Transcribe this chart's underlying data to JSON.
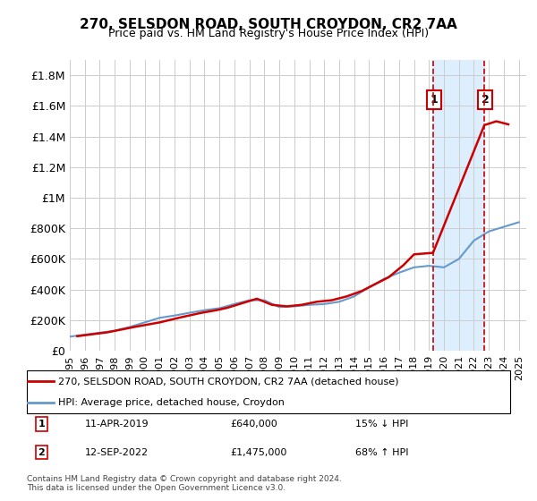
{
  "title": "270, SELSDON ROAD, SOUTH CROYDON, CR2 7AA",
  "subtitle": "Price paid vs. HM Land Registry's House Price Index (HPI)",
  "xlabel": "",
  "ylabel": "",
  "ylim": [
    0,
    1900000
  ],
  "yticks": [
    0,
    200000,
    400000,
    600000,
    800000,
    1000000,
    1200000,
    1400000,
    1600000,
    1800000
  ],
  "ytick_labels": [
    "£0",
    "£200K",
    "£400K",
    "£600K",
    "£800K",
    "£1M",
    "£1.2M",
    "£1.4M",
    "£1.6M",
    "£1.8M"
  ],
  "xlim_start": 1995.0,
  "xlim_end": 2025.5,
  "xtick_years": [
    1995,
    1996,
    1997,
    1998,
    1999,
    2000,
    2001,
    2002,
    2003,
    2004,
    2005,
    2006,
    2007,
    2008,
    2009,
    2010,
    2011,
    2012,
    2013,
    2014,
    2015,
    2016,
    2017,
    2018,
    2019,
    2020,
    2021,
    2022,
    2023,
    2024,
    2025
  ],
  "background_color": "#ffffff",
  "plot_bg_color": "#ffffff",
  "grid_color": "#cccccc",
  "hpi_line_color": "#6699cc",
  "price_line_color": "#cc0000",
  "shade_color": "#ddeeff",
  "marker1_x": 2019.27,
  "marker1_y": 640000,
  "marker1_label": "1",
  "marker1_date": "11-APR-2019",
  "marker1_price": "£640,000",
  "marker1_rel": "15% ↓ HPI",
  "marker2_x": 2022.7,
  "marker2_y": 1475000,
  "marker2_label": "2",
  "marker2_date": "12-SEP-2022",
  "marker2_price": "£1,475,000",
  "marker2_rel": "68% ↑ HPI",
  "legend_line1": "270, SELSDON ROAD, SOUTH CROYDON, CR2 7AA (detached house)",
  "legend_line2": "HPI: Average price, detached house, Croydon",
  "footnote": "Contains HM Land Registry data © Crown copyright and database right 2024.\nThis data is licensed under the Open Government Licence v3.0.",
  "hpi_years": [
    1995,
    1996,
    1997,
    1998,
    1999,
    2000,
    2001,
    2002,
    2003,
    2004,
    2005,
    2006,
    2007,
    2008,
    2009,
    2010,
    2011,
    2012,
    2013,
    2014,
    2015,
    2016,
    2017,
    2018,
    2019,
    2020,
    2021,
    2022,
    2023,
    2024,
    2025
  ],
  "hpi_values": [
    92000,
    105000,
    118000,
    130000,
    155000,
    185000,
    215000,
    230000,
    248000,
    265000,
    278000,
    305000,
    330000,
    330000,
    285000,
    290000,
    300000,
    305000,
    320000,
    355000,
    415000,
    470000,
    510000,
    545000,
    555000,
    545000,
    600000,
    720000,
    780000,
    810000,
    840000
  ],
  "price_years": [
    1995.5,
    1997.5,
    1999.3,
    2001.0,
    2002.5,
    2003.8,
    2004.8,
    2005.5,
    2006.5,
    2007.5,
    2008.5,
    2009.5,
    2010.5,
    2011.5,
    2012.5,
    2013.5,
    2014.5,
    2015.3,
    2016.3,
    2017.3,
    2018.0,
    2019.27,
    2022.7,
    2023.5,
    2024.3
  ],
  "price_values": [
    95000,
    120000,
    155000,
    185000,
    220000,
    248000,
    265000,
    280000,
    310000,
    340000,
    300000,
    290000,
    300000,
    320000,
    330000,
    355000,
    390000,
    430000,
    480000,
    560000,
    630000,
    640000,
    1475000,
    1500000,
    1480000
  ]
}
